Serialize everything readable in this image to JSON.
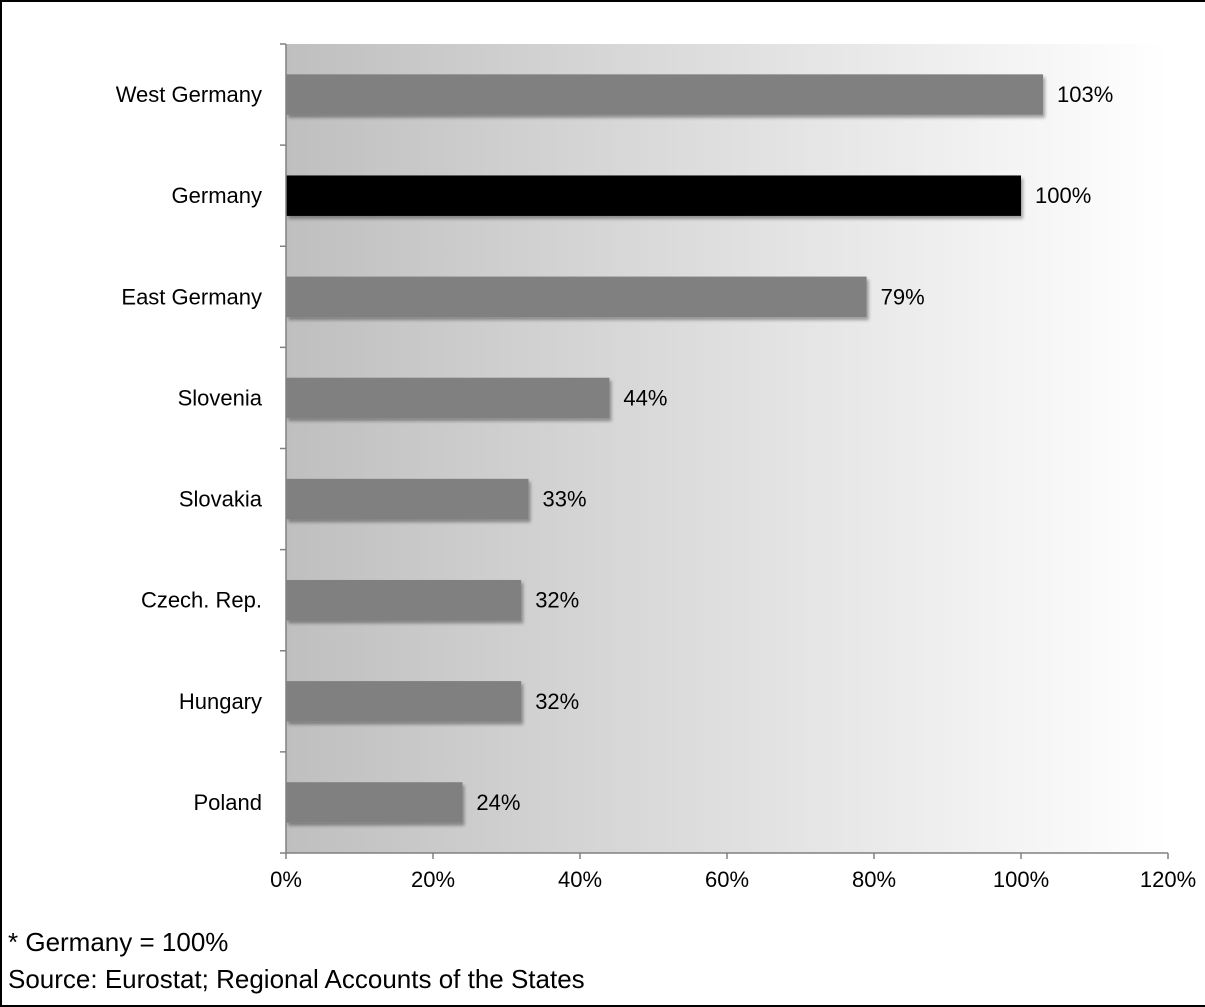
{
  "chart_data": {
    "type": "bar",
    "orientation": "horizontal",
    "categories": [
      "West Germany",
      "Germany",
      "East Germany",
      "Slovenia",
      "Slovakia",
      "Czech. Rep.",
      "Hungary",
      "Poland"
    ],
    "values": [
      103,
      100,
      79,
      44,
      33,
      32,
      32,
      24
    ],
    "data_labels": [
      "103%",
      "100%",
      "79%",
      "44%",
      "33%",
      "32%",
      "32%",
      "24%"
    ],
    "highlight_category": "Germany",
    "xlim": [
      0,
      120
    ],
    "x_ticks": [
      0,
      20,
      40,
      60,
      80,
      100,
      120
    ],
    "x_tick_labels": [
      "0%",
      "20%",
      "40%",
      "60%",
      "80%",
      "100%",
      "120%"
    ],
    "grid": false,
    "title": "",
    "xlabel": "",
    "ylabel": "",
    "colors": {
      "bar": "#808080",
      "highlight_bar": "#000000",
      "plot_gradient_start": "#bfbfbf",
      "plot_gradient_end": "#ffffff"
    }
  },
  "footnotes": {
    "note": "* Germany = 100%",
    "source": "Source: Eurostat; Regional Accounts of the States"
  }
}
